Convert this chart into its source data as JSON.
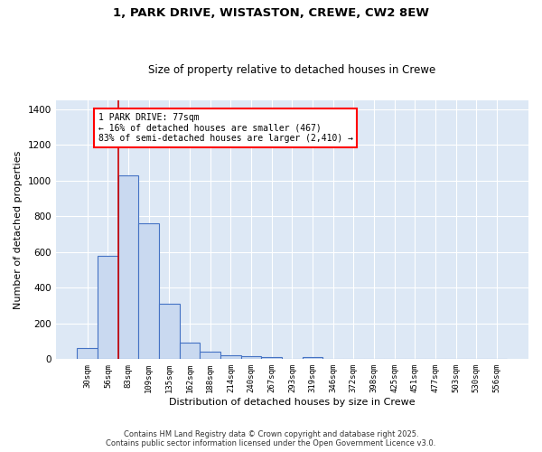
{
  "title_line1": "1, PARK DRIVE, WISTASTON, CREWE, CW2 8EW",
  "title_line2": "Size of property relative to detached houses in Crewe",
  "xlabel": "Distribution of detached houses by size in Crewe",
  "ylabel": "Number of detached properties",
  "bar_labels": [
    "30sqm",
    "56sqm",
    "83sqm",
    "109sqm",
    "135sqm",
    "162sqm",
    "188sqm",
    "214sqm",
    "240sqm",
    "267sqm",
    "293sqm",
    "319sqm",
    "346sqm",
    "372sqm",
    "398sqm",
    "425sqm",
    "451sqm",
    "477sqm",
    "503sqm",
    "530sqm",
    "556sqm"
  ],
  "bar_values": [
    65,
    580,
    1030,
    760,
    310,
    95,
    43,
    23,
    18,
    10,
    0,
    10,
    0,
    0,
    0,
    0,
    0,
    0,
    0,
    0,
    0
  ],
  "bar_color": "#c9d9f0",
  "bar_edge_color": "#4472c4",
  "vline_color": "#cc0000",
  "annotation_text": "1 PARK DRIVE: 77sqm\n← 16% of detached houses are smaller (467)\n83% of semi-detached houses are larger (2,410) →",
  "ylim": [
    0,
    1450
  ],
  "fig_background_color": "#ffffff",
  "ax_background_color": "#dde8f5",
  "grid_color": "#ffffff",
  "footer_line1": "Contains HM Land Registry data © Crown copyright and database right 2025.",
  "footer_line2": "Contains public sector information licensed under the Open Government Licence v3.0."
}
